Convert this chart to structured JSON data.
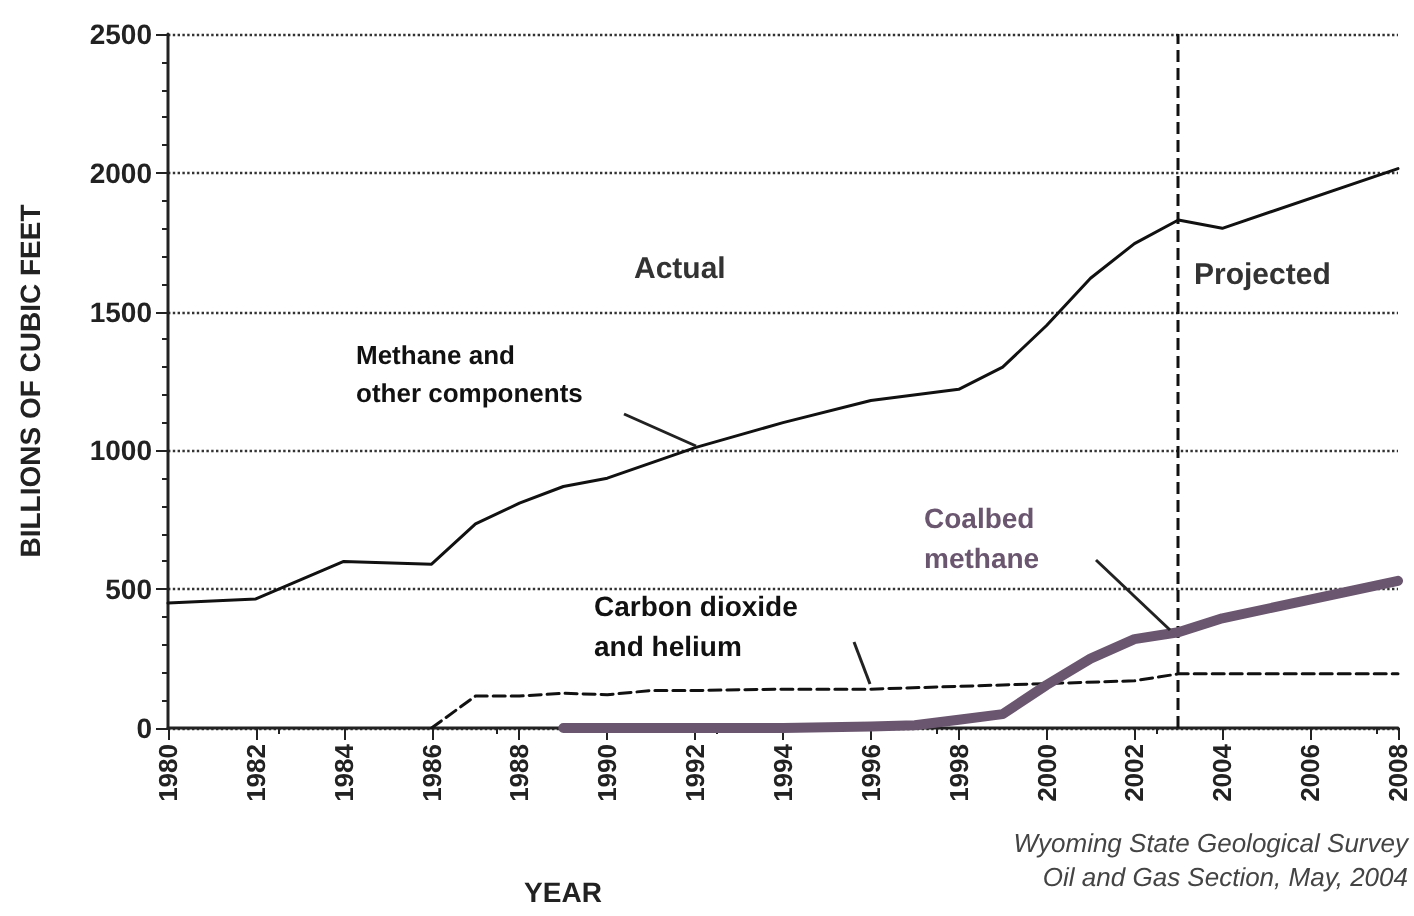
{
  "chart_data": {
    "type": "line",
    "xlabel": "YEAR",
    "ylabel": "BILLIONS OF CUBIC FEET",
    "xlim": [
      1980,
      2008
    ],
    "xticks": [
      1980,
      1982,
      1984,
      1986,
      1988,
      1990,
      1992,
      1994,
      1996,
      1998,
      2000,
      2002,
      2004,
      2006,
      2008
    ],
    "ylim": [
      0,
      2500
    ],
    "yticks": [
      0,
      500,
      1000,
      1500,
      2000,
      2500
    ],
    "grid": "y",
    "legend": false,
    "marker": "none",
    "series": [
      {
        "name": "Methane and other components",
        "color": "#111111",
        "line_style": "solid",
        "x": [
          1980,
          1982,
          1984,
          1986,
          1987,
          1988,
          1989,
          1990,
          1992,
          1994,
          1996,
          1998,
          1999,
          2000,
          2001,
          2002,
          2003,
          2004,
          2008
        ],
        "values": [
          450,
          465,
          600,
          590,
          735,
          810,
          870,
          900,
          1010,
          1100,
          1180,
          1220,
          1300,
          1450,
          1620,
          1745,
          1830,
          1800,
          2015
        ]
      },
      {
        "name": "Carbon dioxide and helium",
        "color": "#111111",
        "line_style": "dashed",
        "x": [
          1986,
          1987,
          1988,
          1989,
          1990,
          1991,
          1992,
          1994,
          1996,
          1998,
          2000,
          2002,
          2003,
          2008
        ],
        "values": [
          0,
          115,
          115,
          125,
          120,
          135,
          135,
          140,
          140,
          150,
          160,
          170,
          195,
          195
        ]
      },
      {
        "name": "Coalbed methane",
        "color": "#6b5670",
        "line_style": "solid",
        "x": [
          1989,
          1992,
          1994,
          1996,
          1997,
          1998,
          1999,
          2000,
          2001,
          2002,
          2003,
          2004,
          2008
        ],
        "values": [
          0,
          0,
          0,
          5,
          10,
          30,
          50,
          155,
          250,
          320,
          345,
          395,
          530
        ]
      }
    ],
    "ref_lines": [
      {
        "axis": "x",
        "value": 2003,
        "label": null,
        "color": "#111111",
        "line_style": "dashed"
      }
    ],
    "annotations": [
      "Actual",
      "Projected",
      "Wyoming State Geological Survey\nOil and Gas Section, May, 2004"
    ]
  }
}
